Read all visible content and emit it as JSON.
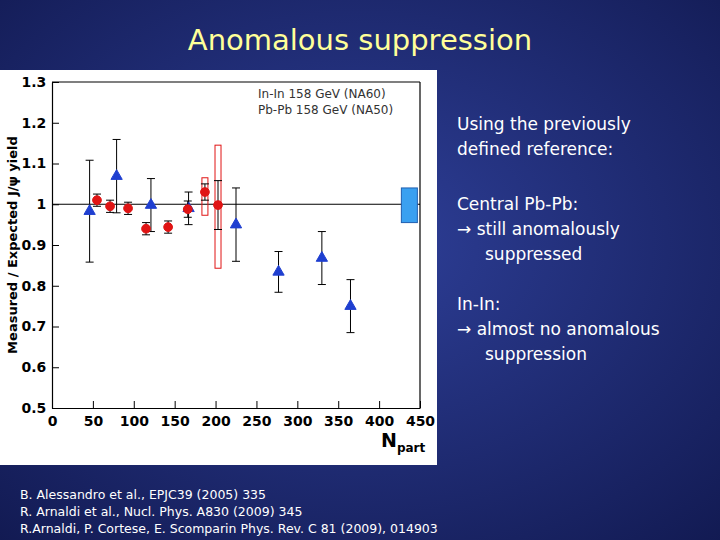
{
  "chart_data": {
    "type": "scatter",
    "ylabel": "Measured / Expected J/ψ yield",
    "xlabel": "N",
    "xlabel_subscript": "part",
    "xlim": [
      0,
      450
    ],
    "xticks": [
      0,
      50,
      100,
      150,
      200,
      250,
      300,
      350,
      400,
      450
    ],
    "ylim": [
      0.5,
      1.3
    ],
    "yticks": [
      0.5,
      0.6,
      0.7,
      0.8,
      0.9,
      1,
      1.1,
      1.2,
      1.3
    ],
    "legend": "upper right",
    "reference_line": 1,
    "series": [
      {
        "name": "In-In 158 GeV (NA60)",
        "color": "#1f3fd0",
        "marker": "triangle",
        "x": [
          46,
          79,
          121,
          167,
          225,
          277,
          330,
          365
        ],
        "values": [
          0.983,
          1.069,
          0.998,
          0.99,
          0.95,
          0.834,
          0.868,
          0.75
        ],
        "errors": [
          0.125,
          0.09,
          0.065,
          0.04,
          0.09,
          0.05,
          0.065,
          0.065
        ]
      },
      {
        "name": "Pb-Pb 158 GeV (NA50)",
        "color": "#e01414",
        "marker": "circle",
        "x": [
          55,
          71,
          93,
          115,
          142,
          166,
          187,
          203
        ],
        "values": [
          1.01,
          0.995,
          0.99,
          0.94,
          0.944,
          0.988,
          1.03,
          0.998
        ],
        "errors": [
          0.015,
          0.015,
          0.015,
          0.015,
          0.015,
          0.02,
          0.02,
          0.06
        ],
        "syst": [
          null,
          null,
          null,
          null,
          null,
          null,
          [
            0.973,
            1.065
          ],
          [
            0.843,
            1.145
          ]
        ]
      }
    ],
    "global_uncertainty": {
      "x": 437,
      "low": 0.955,
      "high": 1.04,
      "color": "#3aa0f0"
    }
  },
  "slide": {
    "title": "Anomalous suppression",
    "intro": [
      "Using the previously",
      "defined reference:"
    ],
    "points": [
      {
        "heading": "Central Pb-Pb:",
        "lines": [
          "→ still anomalously",
          "suppressed"
        ]
      },
      {
        "heading": "In-In:",
        "lines": [
          "→ almost no anomalous",
          "suppression"
        ]
      }
    ],
    "references": [
      "B. Alessandro et al., EPJC39 (2005) 335",
      "R. Arnaldi et al., Nucl. Phys. A830 (2009) 345",
      "R.Arnaldi, P. Cortese, E. Scomparin Phys. Rev. C 81 (2009), 014903"
    ]
  }
}
